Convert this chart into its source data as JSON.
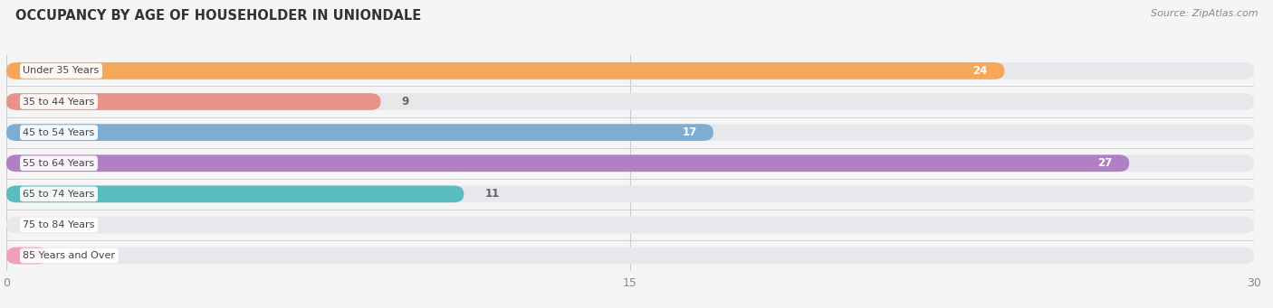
{
  "title": "OCCUPANCY BY AGE OF HOUSEHOLDER IN UNIONDALE",
  "source": "Source: ZipAtlas.com",
  "categories": [
    "Under 35 Years",
    "35 to 44 Years",
    "45 to 54 Years",
    "55 to 64 Years",
    "65 to 74 Years",
    "75 to 84 Years",
    "85 Years and Over"
  ],
  "values": [
    24,
    9,
    17,
    27,
    11,
    0,
    1
  ],
  "colors": [
    "#f5a85a",
    "#e8938a",
    "#7eadd4",
    "#b07fc4",
    "#5bbcbe",
    "#b0b8e8",
    "#f0a0b8"
  ],
  "xlim": [
    0,
    30
  ],
  "xticks": [
    0,
    15,
    30
  ],
  "bar_height": 0.55,
  "background_color": "#f5f5f5",
  "bar_bg_color": "#e8e8ec",
  "label_color_inside": "#ffffff",
  "label_color_outside": "#666666",
  "title_fontsize": 10.5,
  "source_fontsize": 8,
  "tick_fontsize": 9,
  "category_fontsize": 8,
  "inside_threshold": 15,
  "rounding_size": 0.25
}
